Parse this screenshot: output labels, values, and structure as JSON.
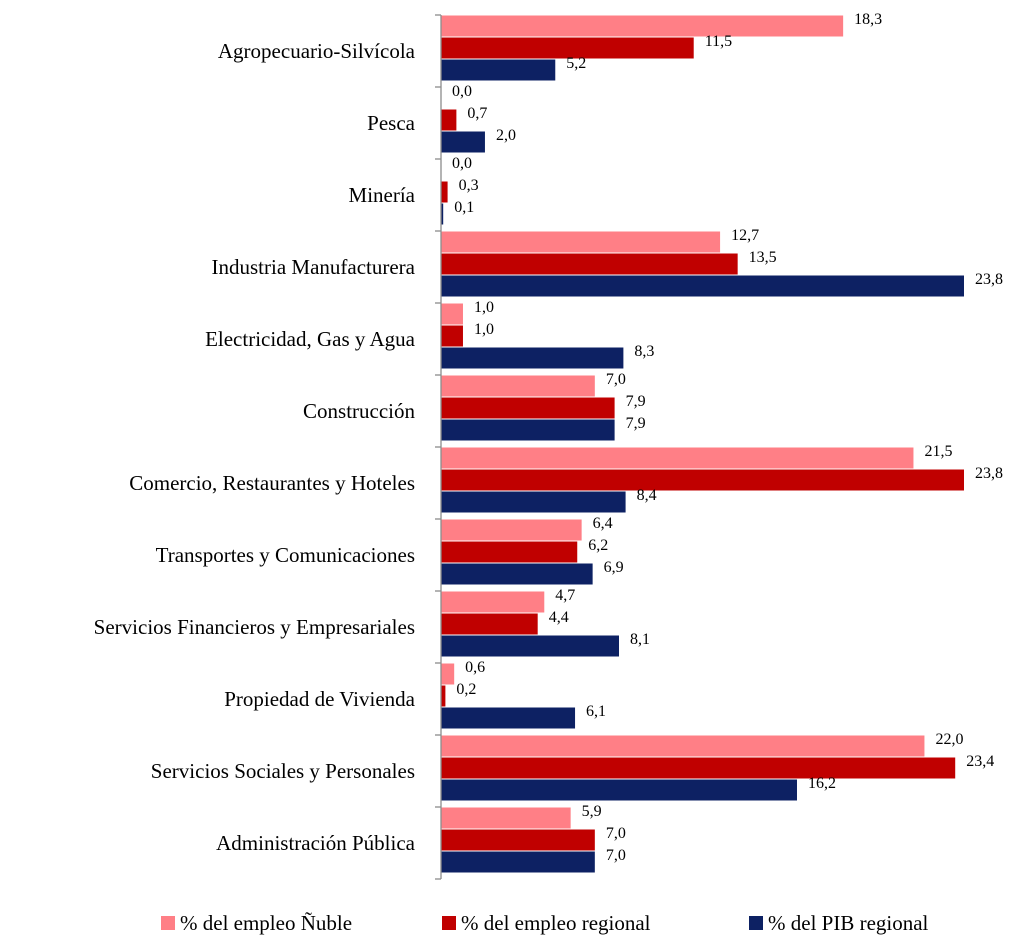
{
  "chart_data": {
    "type": "bar",
    "orientation": "horizontal",
    "categories": [
      "Agropecuario-Silvícola",
      "Pesca",
      "Minería",
      "Industria Manufacturera",
      "Electricidad, Gas y Agua",
      "Construcción",
      "Comercio, Restaurantes y Hoteles",
      "Transportes y Comunicaciones",
      "Servicios Financieros y Empresariales",
      "Propiedad de Vivienda",
      "Servicios Sociales y Personales",
      "Administración Pública"
    ],
    "series": [
      {
        "name": "% del empleo Ñuble",
        "color": "#ff7f86",
        "values": [
          18.3,
          0.0,
          0.0,
          12.7,
          1.0,
          7.0,
          21.5,
          6.4,
          4.7,
          0.6,
          22.0,
          5.9
        ],
        "labels": [
          "18,3",
          "0,0",
          "0,0",
          "12,7",
          "1,0",
          "7,0",
          "21,5",
          "6,4",
          "4,7",
          "0,6",
          "22,0",
          "5,9"
        ]
      },
      {
        "name": "% del empleo regional",
        "color": "#c00000",
        "values": [
          11.5,
          0.7,
          0.3,
          13.5,
          1.0,
          7.9,
          23.8,
          6.2,
          4.4,
          0.2,
          23.4,
          7.0
        ],
        "labels": [
          "11,5",
          "0,7",
          "0,3",
          "13,5",
          "1,0",
          "7,9",
          "23,8",
          "6,2",
          "4,4",
          "0,2",
          "23,4",
          "7,0"
        ]
      },
      {
        "name": "% del PIB regional",
        "color": "#0d2163",
        "values": [
          5.2,
          2.0,
          0.1,
          23.8,
          8.3,
          7.9,
          8.4,
          6.9,
          8.1,
          6.1,
          16.2,
          7.0
        ],
        "labels": [
          "5,2",
          "2,0",
          "0,1",
          "23,8",
          "8,3",
          "7,9",
          "8,4",
          "6,9",
          "8,1",
          "6,1",
          "16,2",
          "7,0"
        ]
      }
    ],
    "xlim": [
      0,
      24
    ],
    "grid": false,
    "legend_position": "bottom"
  }
}
